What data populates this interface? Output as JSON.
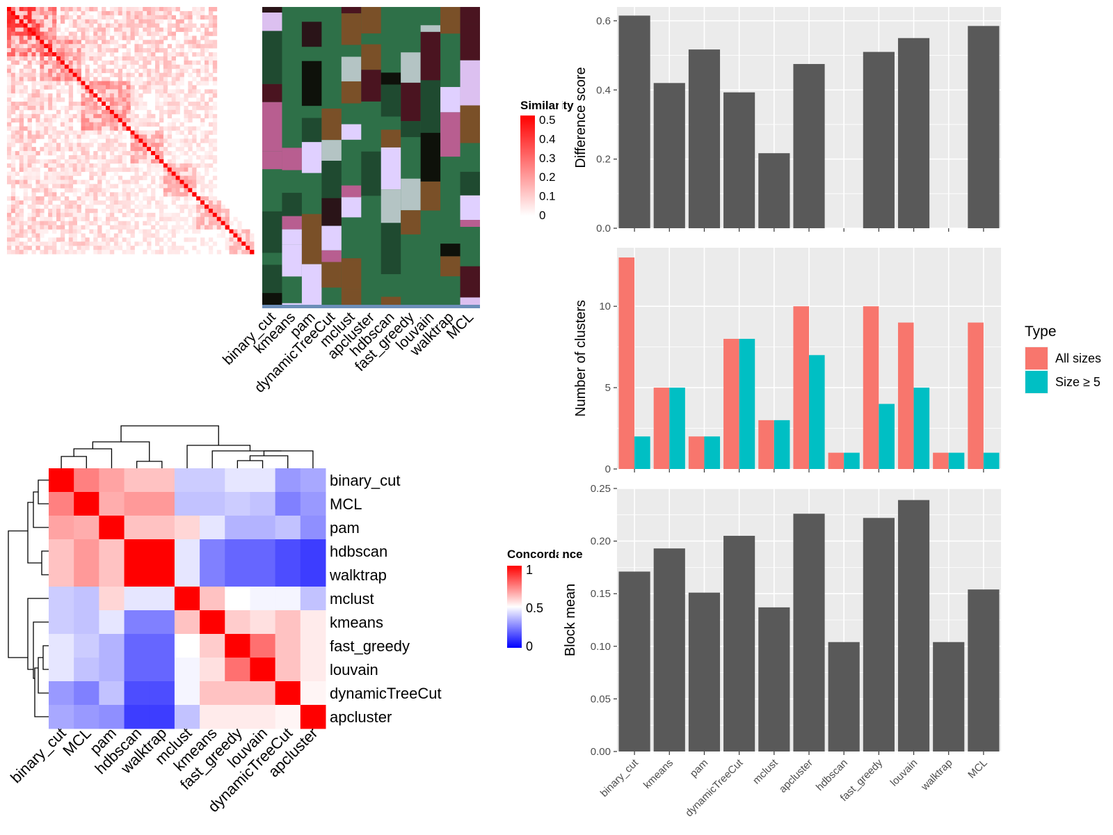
{
  "similarity_panel": {
    "legend_title": "Similarity",
    "legend_ticks": [
      "0.5",
      "0.4",
      "0.3",
      "0.2",
      "0.1",
      "0"
    ],
    "methods": [
      "binary_cut",
      "kmeans",
      "pam",
      "dynamicTreeCut",
      "mclust",
      "apcluster",
      "hdbscan",
      "fast_greedy",
      "louvain",
      "walktrap",
      "MCL"
    ]
  },
  "concordance_panel": {
    "legend_title": "Concordance",
    "legend_ticks": [
      "1",
      "0.5",
      "0"
    ],
    "row_labels": [
      "binary_cut",
      "MCL",
      "pam",
      "hdbscan",
      "walktrap",
      "mclust",
      "kmeans",
      "fast_greedy",
      "louvain",
      "dynamicTreeCut",
      "apcluster"
    ],
    "col_labels": [
      "binary_cut",
      "MCL",
      "pam",
      "hdbscan",
      "walktrap",
      "mclust",
      "kmeans",
      "fast_greedy",
      "louvain",
      "dynamicTreeCut",
      "apcluster"
    ]
  },
  "chart_data": [
    {
      "type": "bar",
      "categories": [
        "binary_cut",
        "kmeans",
        "pam",
        "dynamicTreeCut",
        "mclust",
        "apcluster",
        "hdbscan",
        "fast_greedy",
        "louvain",
        "walktrap",
        "MCL"
      ],
      "values": [
        0.615,
        0.42,
        0.517,
        0.393,
        0.217,
        0.475,
        0,
        0.51,
        0.55,
        0,
        0.585
      ],
      "ylabel": "Difference score",
      "ylim": [
        0,
        0.64
      ],
      "yticks": [
        "0.0",
        "0.2",
        "0.4",
        "0.6"
      ],
      "bar_color": "#595959",
      "grid": true
    },
    {
      "type": "bar",
      "categories": [
        "binary_cut",
        "kmeans",
        "pam",
        "dynamicTreeCut",
        "mclust",
        "apcluster",
        "hdbscan",
        "fast_greedy",
        "louvain",
        "walktrap",
        "MCL"
      ],
      "series": [
        {
          "name": "All sizes",
          "values": [
            13,
            5,
            2,
            8,
            3,
            10,
            1,
            10,
            9,
            1,
            9
          ],
          "color": "#F8766D"
        },
        {
          "name": "Size ≥ 5",
          "values": [
            2,
            5,
            2,
            8,
            3,
            7,
            1,
            4,
            5,
            1,
            1
          ],
          "color": "#00BFC4"
        }
      ],
      "ylabel": "Number of clusters",
      "ylim": [
        0,
        13.6
      ],
      "yticks": [
        "0",
        "5",
        "10"
      ],
      "legend_title": "Type",
      "legend_position": "right",
      "grid": true
    },
    {
      "type": "bar",
      "categories": [
        "binary_cut",
        "kmeans",
        "pam",
        "dynamicTreeCut",
        "mclust",
        "apcluster",
        "hdbscan",
        "fast_greedy",
        "louvain",
        "walktrap",
        "MCL"
      ],
      "values": [
        0.171,
        0.193,
        0.151,
        0.205,
        0.137,
        0.226,
        0.104,
        0.222,
        0.239,
        0.104,
        0.154
      ],
      "ylabel": "Block mean",
      "ylim": [
        0,
        0.25
      ],
      "yticks": [
        "0.00",
        "0.05",
        "0.10",
        "0.15",
        "0.20",
        "0.25"
      ],
      "bar_color": "#595959",
      "grid": true
    },
    {
      "type": "heatmap",
      "rows": [
        "binary_cut",
        "MCL",
        "pam",
        "hdbscan",
        "walktrap",
        "mclust",
        "kmeans",
        "fast_greedy",
        "louvain",
        "dynamicTreeCut",
        "apcluster"
      ],
      "cols": [
        "binary_cut",
        "MCL",
        "pam",
        "hdbscan",
        "walktrap",
        "mclust",
        "kmeans",
        "fast_greedy",
        "louvain",
        "dynamicTreeCut",
        "apcluster"
      ],
      "values": [
        [
          1.0,
          0.75,
          0.68,
          0.62,
          0.62,
          0.4,
          0.4,
          0.45,
          0.45,
          0.3,
          0.33
        ],
        [
          0.75,
          1.0,
          0.66,
          0.7,
          0.7,
          0.38,
          0.38,
          0.4,
          0.38,
          0.25,
          0.3
        ],
        [
          0.68,
          0.66,
          1.0,
          0.62,
          0.62,
          0.58,
          0.45,
          0.35,
          0.35,
          0.38,
          0.28
        ],
        [
          0.62,
          0.7,
          0.62,
          1.0,
          1.0,
          0.45,
          0.25,
          0.2,
          0.2,
          0.15,
          0.12
        ],
        [
          0.62,
          0.7,
          0.62,
          1.0,
          1.0,
          0.45,
          0.25,
          0.2,
          0.2,
          0.15,
          0.12
        ],
        [
          0.4,
          0.38,
          0.58,
          0.45,
          0.45,
          1.0,
          0.62,
          0.5,
          0.48,
          0.48,
          0.38
        ],
        [
          0.4,
          0.38,
          0.45,
          0.25,
          0.25,
          0.62,
          1.0,
          0.6,
          0.56,
          0.62,
          0.54
        ],
        [
          0.45,
          0.4,
          0.35,
          0.2,
          0.2,
          0.5,
          0.6,
          1.0,
          0.78,
          0.62,
          0.54
        ],
        [
          0.45,
          0.38,
          0.35,
          0.2,
          0.2,
          0.48,
          0.56,
          0.78,
          1.0,
          0.62,
          0.54
        ],
        [
          0.3,
          0.25,
          0.38,
          0.15,
          0.15,
          0.48,
          0.62,
          0.62,
          0.62,
          1.0,
          0.52
        ],
        [
          0.33,
          0.3,
          0.28,
          0.12,
          0.12,
          0.38,
          0.54,
          0.54,
          0.54,
          0.52,
          1.0
        ]
      ]
    }
  ]
}
